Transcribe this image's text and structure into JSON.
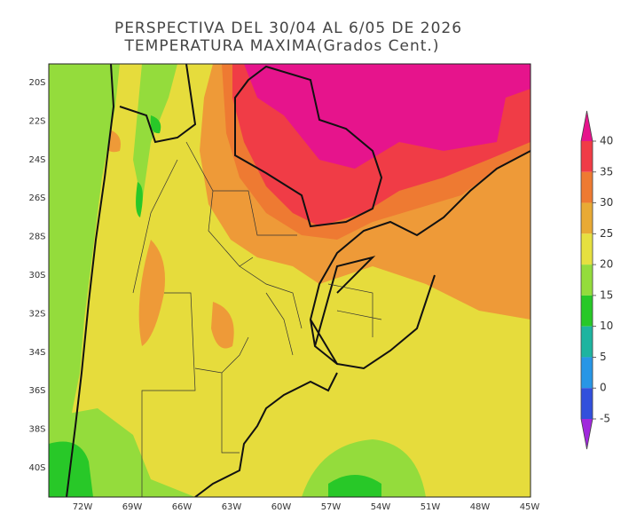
{
  "title": "PERSPECTIVA DEL 30/04 AL 6/05 DE 2026",
  "subtitle": "TEMPERATURA MAXIMA(Grados Cent.)",
  "lat_labels": [
    "20S",
    "22S",
    "24S",
    "26S",
    "28S",
    "30S",
    "32S",
    "34S",
    "36S",
    "38S",
    "40S"
  ],
  "lon_labels": [
    "72W",
    "69W",
    "66W",
    "63W",
    "60W",
    "57W",
    "54W",
    "51W",
    "48W",
    "45W"
  ],
  "colorbar": {
    "ticks": [
      40,
      35,
      30,
      25,
      20,
      15,
      10,
      5,
      0,
      -5
    ],
    "colors": [
      "#e6148c",
      "#f03c46",
      "#ee7a32",
      "#e8aa34",
      "#e6e040",
      "#94dc3c",
      "#28c828",
      "#1eb4a0",
      "#2896e6",
      "#3250dc",
      "#a028dc"
    ]
  }
}
